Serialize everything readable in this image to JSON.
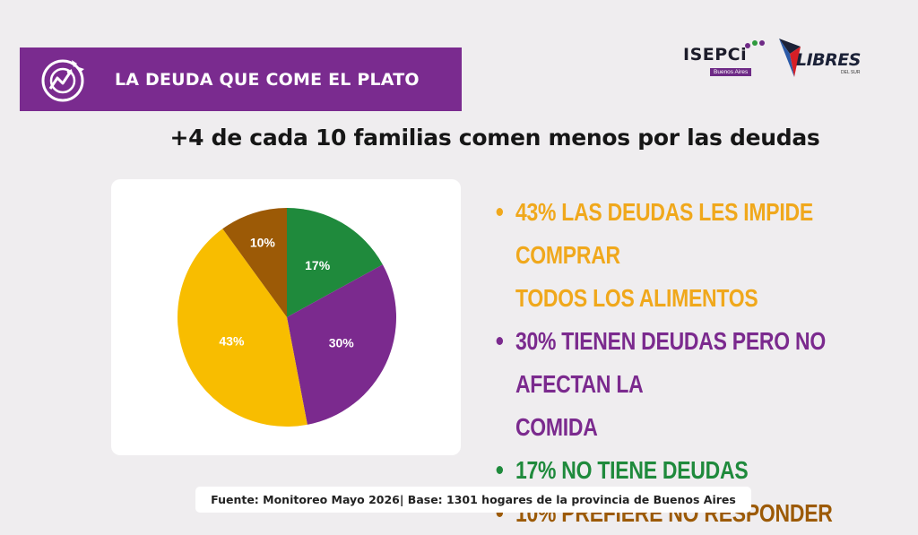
{
  "banner": {
    "title": "LA DEUDA QUE COME EL PLATO",
    "icon": "broken-plate-icon"
  },
  "logos": {
    "isepci": {
      "name": "ISEPCi",
      "sub": "Buenos Aires"
    },
    "libres": {
      "name": "LIBRES",
      "sub": "DEL SUR"
    }
  },
  "headline": "+4 de cada 10 familias comen menos por las deudas",
  "chart_data": {
    "type": "pie",
    "slices": [
      {
        "label": "17%",
        "value": 17,
        "color": "#1f8a3c"
      },
      {
        "label": "30%",
        "value": 30,
        "color": "#7b2a8e"
      },
      {
        "label": "43%",
        "value": 43,
        "color": "#f8bd00"
      },
      {
        "label": "10%",
        "value": 10,
        "color": "#9c5a06"
      }
    ],
    "legend": [
      {
        "lines": [
          "43% LAS DEUDAS LES IMPIDE COMPRAR",
          "TODOS LOS ALIMENTOS"
        ],
        "color": "#f0a81c"
      },
      {
        "lines": [
          "30% TIENEN DEUDAS PERO NO AFECTAN LA",
          "COMIDA"
        ],
        "color": "#7b2a8e"
      },
      {
        "lines": [
          "17% NO TIENE DEUDAS"
        ],
        "color": "#1f8a3c"
      },
      {
        "lines": [
          "10% PREFIERE NO RESPONDER"
        ],
        "color": "#9c5a06"
      }
    ]
  },
  "source": "Fuente: Monitoreo Mayo 2026| Base: 1301 hogares de la provincia de Buenos Aires"
}
